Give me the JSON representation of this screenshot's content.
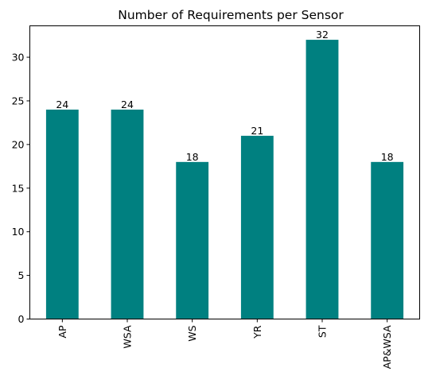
{
  "chart_data": {
    "type": "bar",
    "title": "Number of Requirements per Sensor",
    "xlabel": "",
    "ylabel": "",
    "categories": [
      "AP",
      "WSA",
      "WS",
      "YR",
      "ST",
      "AP&WSA"
    ],
    "values": [
      24,
      24,
      18,
      21,
      32,
      18
    ],
    "value_labels": [
      "24",
      "24",
      "18",
      "21",
      "32",
      "18"
    ],
    "ylim": [
      0,
      33.6
    ],
    "yticks": [
      0,
      5,
      10,
      15,
      20,
      25,
      30
    ],
    "ytick_labels": [
      "0",
      "5",
      "10",
      "15",
      "20",
      "25",
      "30"
    ],
    "x_tick_rotation": "vertical",
    "grid": false,
    "legend": "none",
    "bar_color": "#008080"
  }
}
